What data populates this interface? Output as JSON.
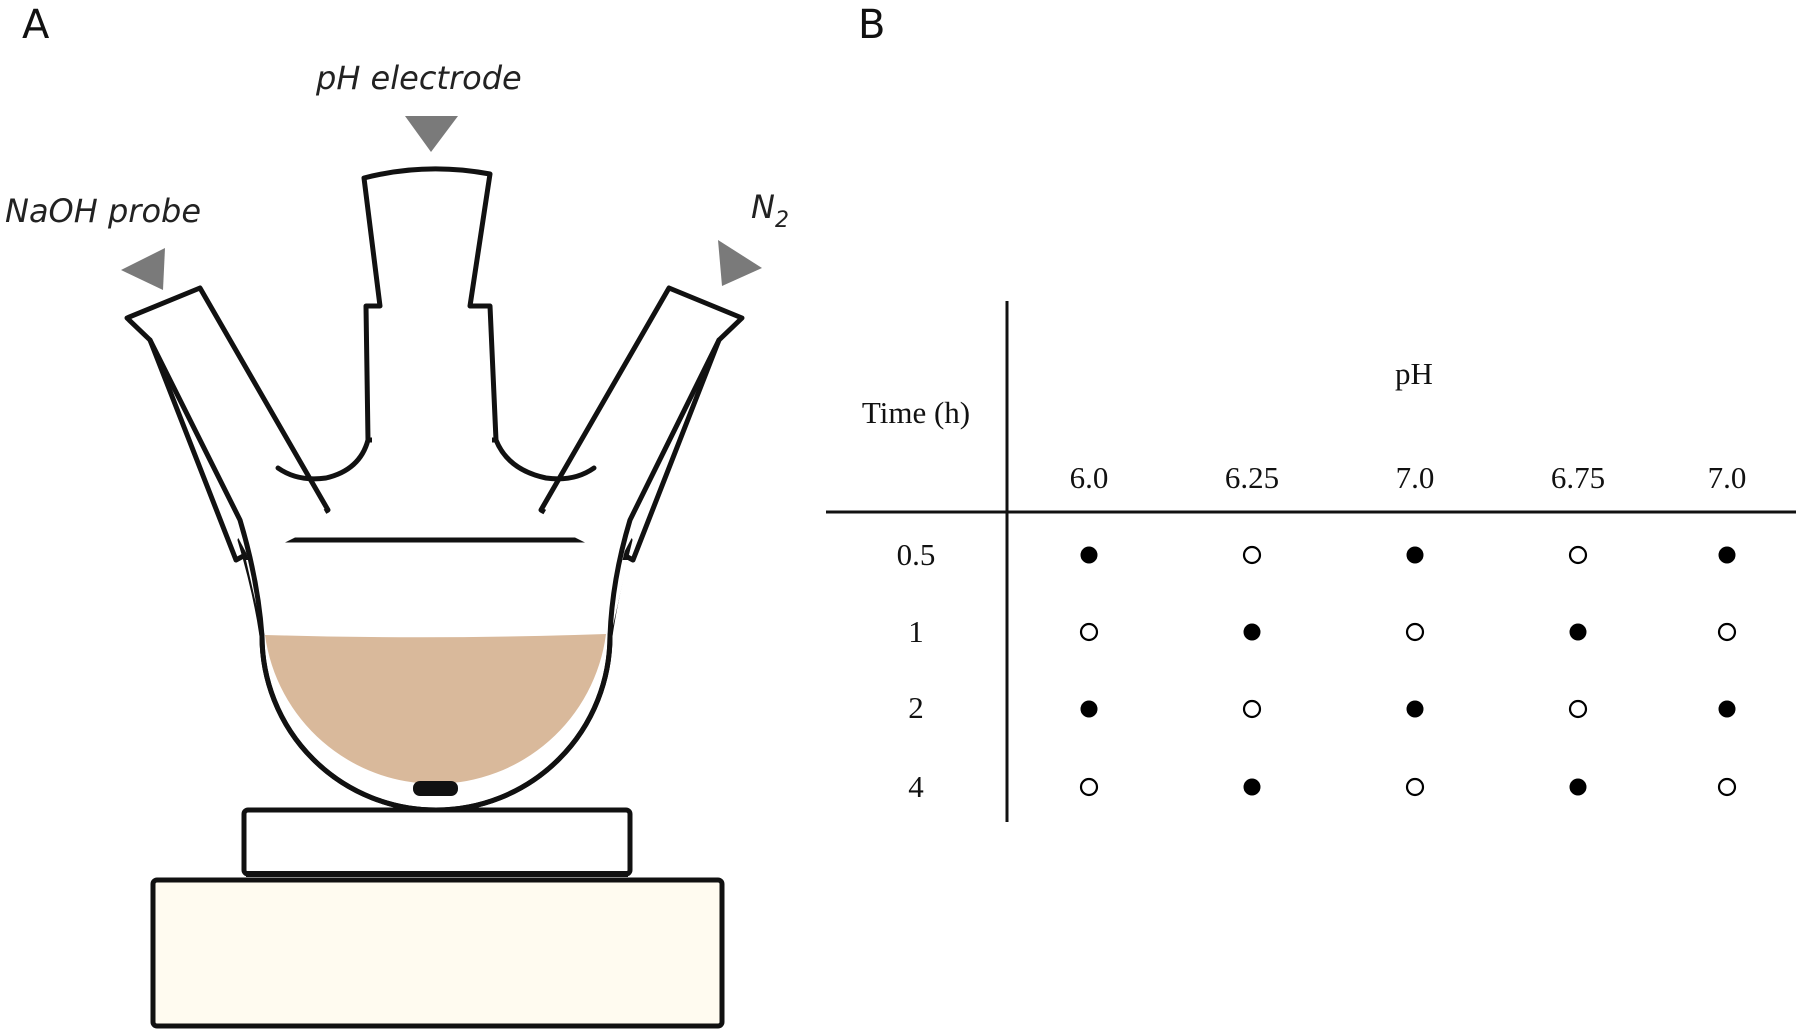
{
  "panel_a": {
    "letter": "A",
    "labels": {
      "ph_electrode": "pH electrode",
      "naoh_probe": "NaOH probe",
      "n2_base": "N",
      "n2_subscript": "2"
    },
    "colors": {
      "liquid": "#d9b99b",
      "arrow": "#7a7a7a",
      "base": "#fffbf0",
      "outline": "#111111"
    }
  },
  "panel_b": {
    "letter": "B",
    "table": {
      "row_header": "Time (h)",
      "column_group_header": "pH",
      "columns": [
        "6.0",
        "6.25",
        "7.0",
        "6.75",
        "7.0"
      ],
      "rows": [
        {
          "time": "0.5",
          "marks": [
            "filled",
            "open",
            "filled",
            "open",
            "filled"
          ]
        },
        {
          "time": "1",
          "marks": [
            "open",
            "filled",
            "open",
            "filled",
            "open"
          ]
        },
        {
          "time": "2",
          "marks": [
            "filled",
            "open",
            "filled",
            "open",
            "filled"
          ]
        },
        {
          "time": "4",
          "marks": [
            "open",
            "filled",
            "open",
            "filled",
            "open"
          ]
        }
      ]
    }
  }
}
